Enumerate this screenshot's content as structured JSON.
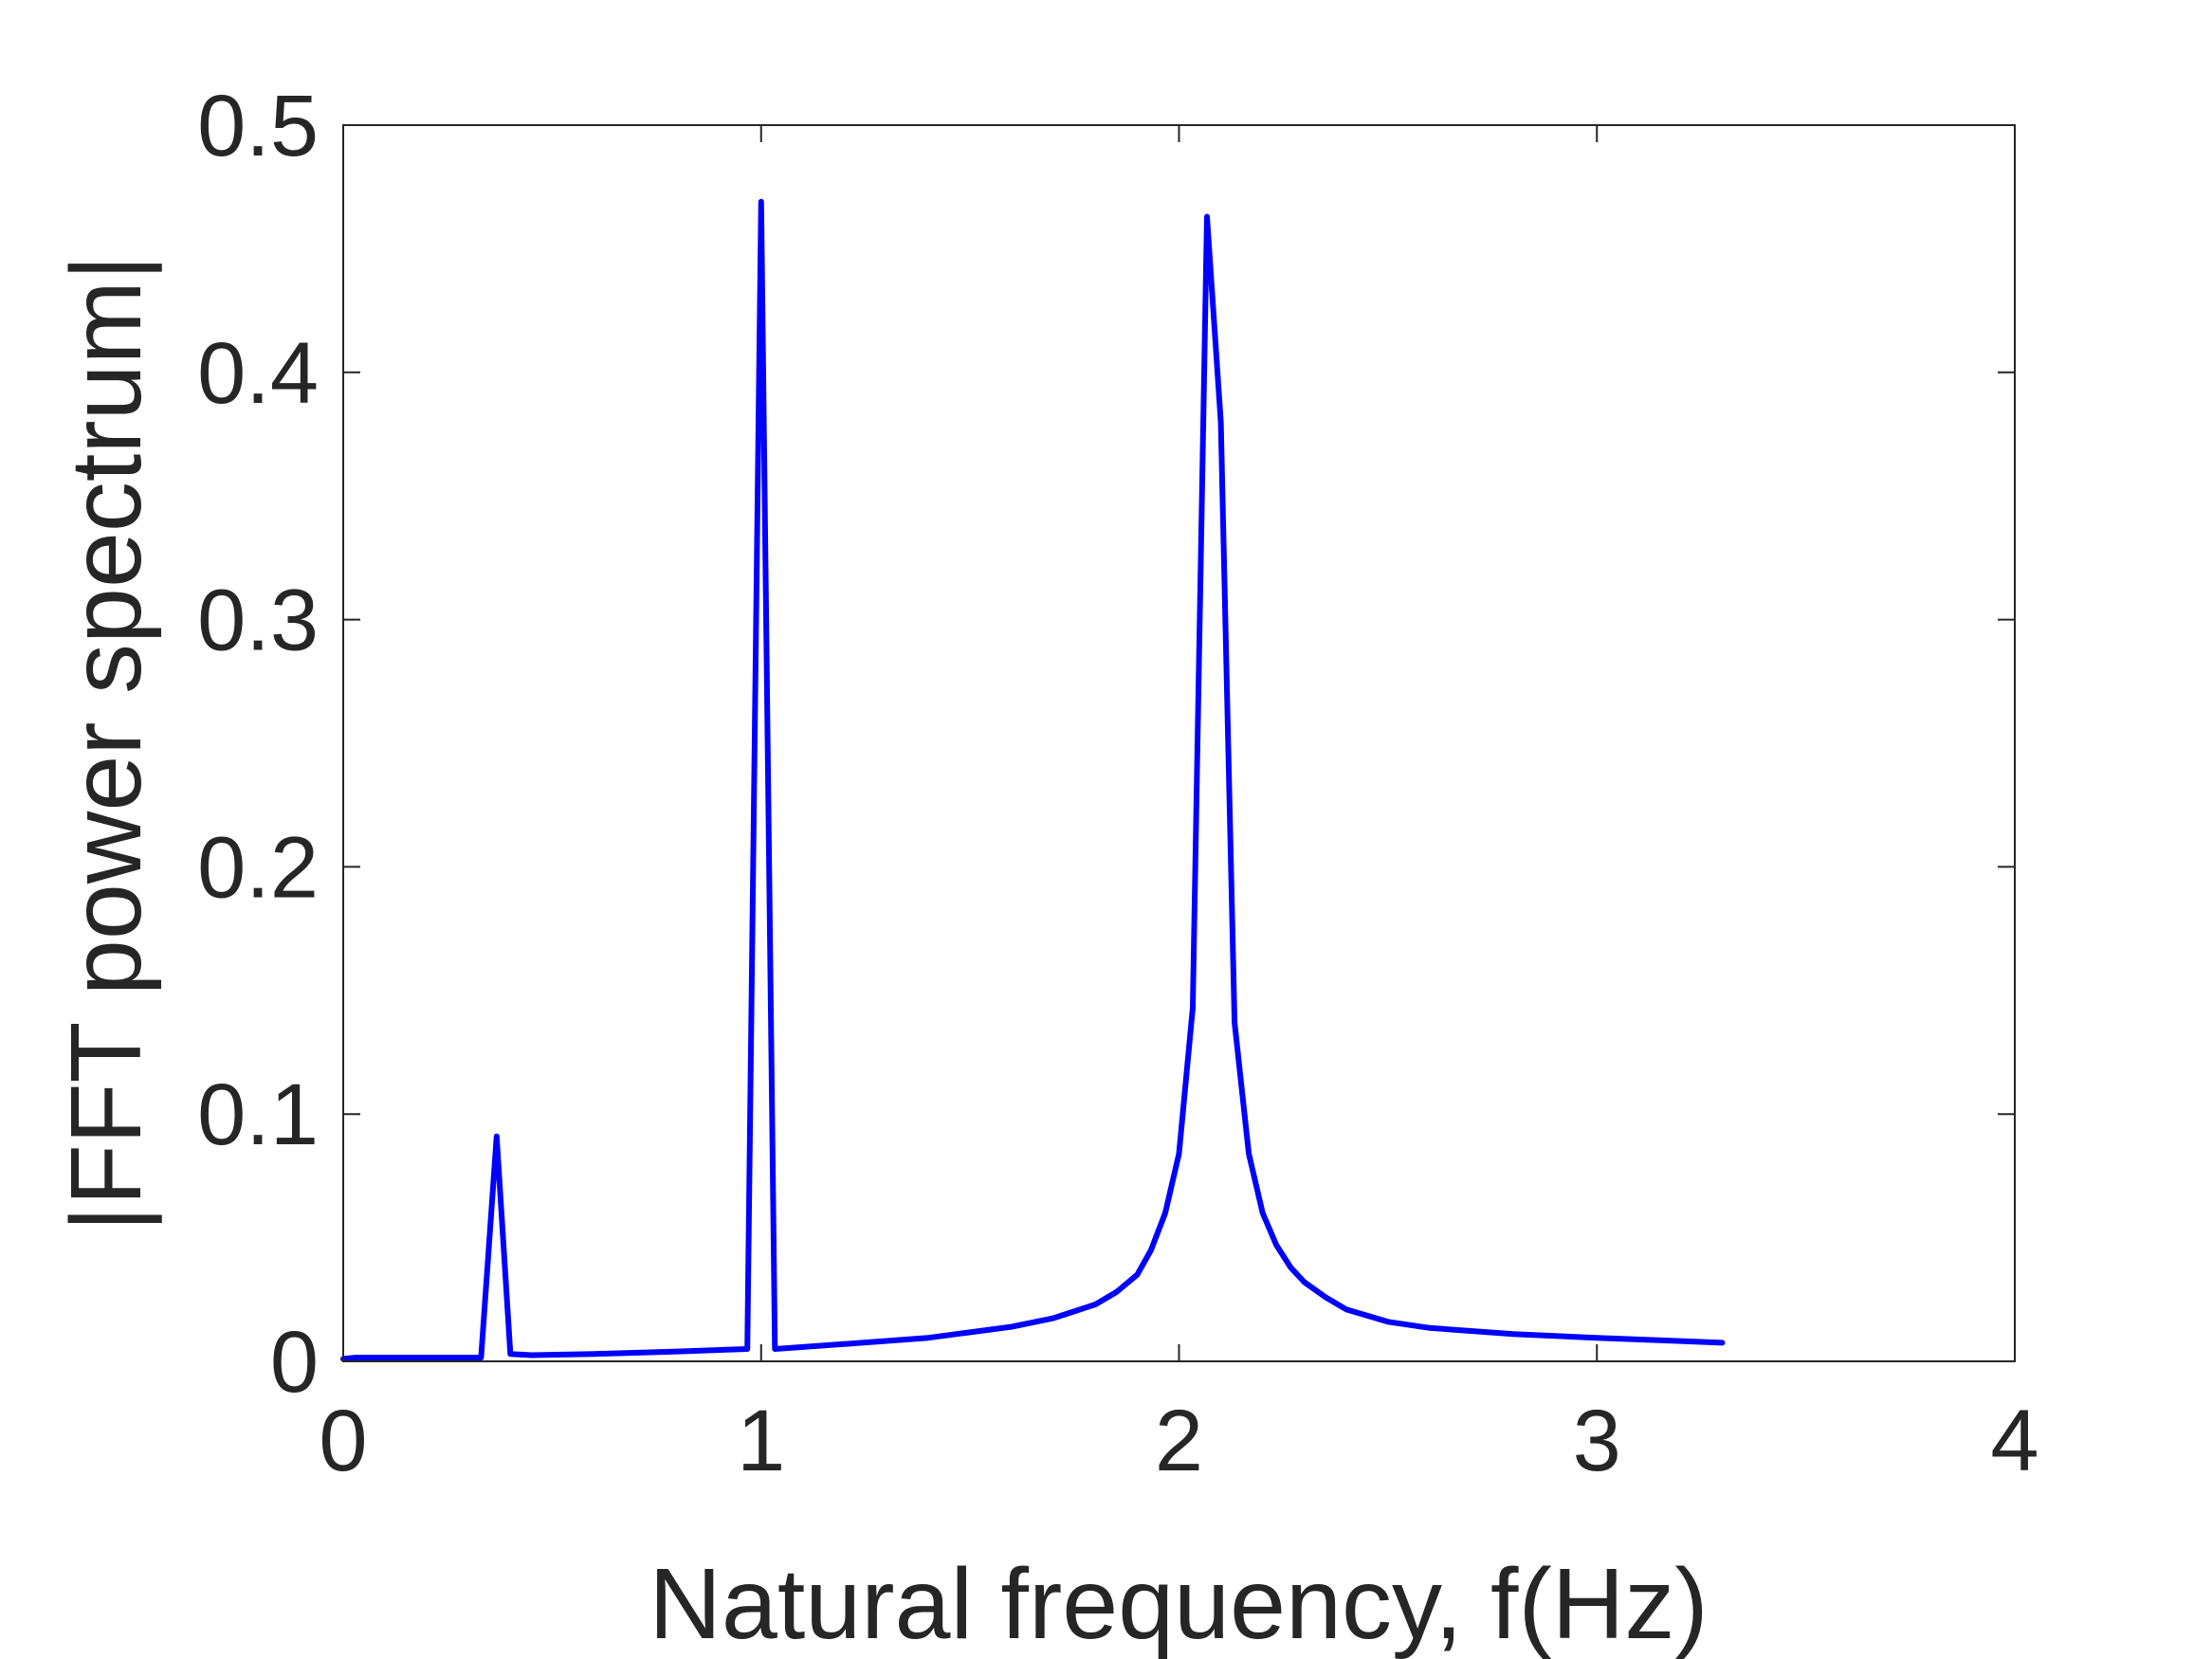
{
  "chart_data": {
    "type": "line",
    "title": "",
    "xlabel": "Natural frequency, f(Hz)",
    "ylabel": "|FFT power spectrum|",
    "xlim": [
      0,
      4
    ],
    "ylim": [
      0,
      0.5
    ],
    "xticks": [
      0,
      1,
      2,
      3,
      4
    ],
    "xtick_labels": [
      "0",
      "1",
      "2",
      "3",
      "4"
    ],
    "yticks": [
      0,
      0.1,
      0.2,
      0.3,
      0.4,
      0.5
    ],
    "ytick_labels": [
      "0",
      "0.1",
      "0.2",
      "0.3",
      "0.4",
      "0.5"
    ],
    "grid": false,
    "box": true,
    "line_color": "#0000ff",
    "axis_color": "#262626",
    "series": [
      {
        "x": [
          0,
          0.03,
          0.33,
          0.367,
          0.4,
          0.45,
          0.6,
          0.8,
          0.967,
          1.0,
          1.033,
          1.2,
          1.4,
          1.6,
          1.7,
          1.8,
          1.85,
          1.9,
          1.933,
          1.967,
          2.0,
          2.033,
          2.067,
          2.1,
          2.133,
          2.167,
          2.2,
          2.233,
          2.267,
          2.3,
          2.35,
          2.4,
          2.5,
          2.6,
          2.8,
          3.0,
          3.3
        ],
        "y": [
          0.001,
          0.0015,
          0.0015,
          0.091,
          0.003,
          0.0025,
          0.003,
          0.004,
          0.005,
          0.469,
          0.005,
          0.007,
          0.0095,
          0.014,
          0.0175,
          0.023,
          0.028,
          0.035,
          0.045,
          0.06,
          0.084,
          0.143,
          0.463,
          0.38,
          0.137,
          0.084,
          0.06,
          0.047,
          0.038,
          0.032,
          0.026,
          0.021,
          0.016,
          0.0135,
          0.011,
          0.0095,
          0.0075
        ]
      }
    ]
  }
}
